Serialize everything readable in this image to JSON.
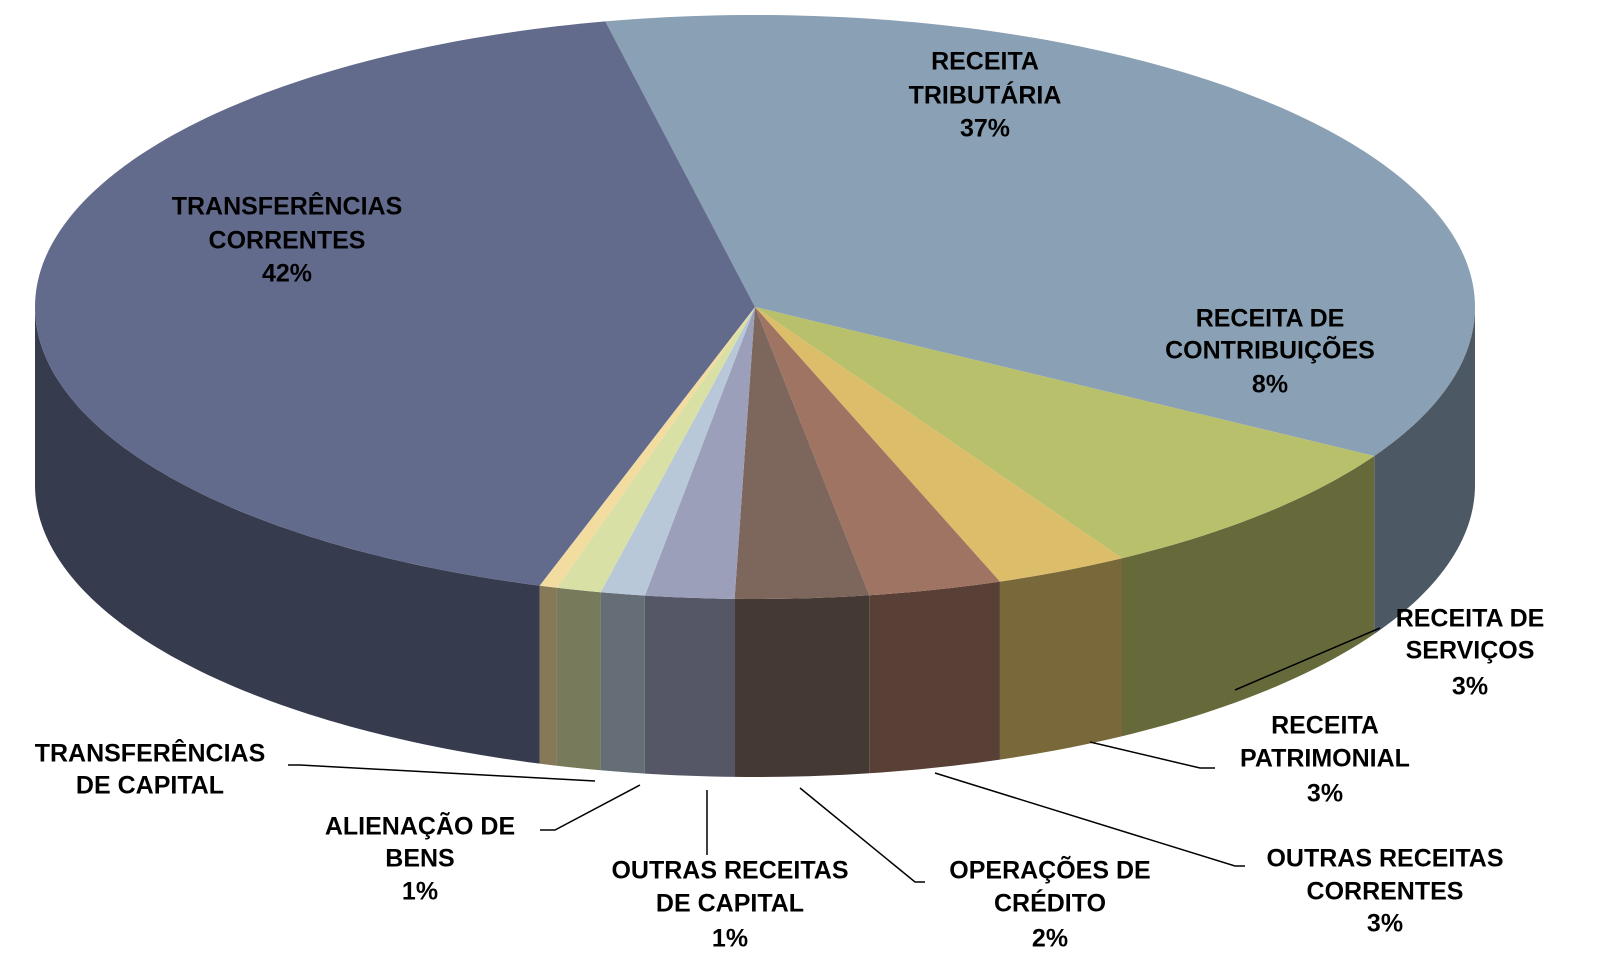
{
  "chart_data": {
    "type": "pie",
    "categories": [
      [
        "RECEITA",
        "TRIBUTÁRIA"
      ],
      [
        "RECEITA DE",
        "CONTRIBUIÇÕES"
      ],
      [
        "RECEITA DE",
        "SERVIÇOS"
      ],
      [
        "RECEITA",
        "PATRIMONIAL"
      ],
      [
        "OUTRAS RECEITAS",
        "CORRENTES"
      ],
      [
        "OPERAÇÕES DE",
        "CRÉDITO"
      ],
      [
        "OUTRAS RECEITAS",
        "DE CAPITAL"
      ],
      [
        "ALIENAÇÃO DE",
        "BENS"
      ],
      [
        "TRANSFERÊNCIAS",
        "DE CAPITAL"
      ],
      [
        "TRANSFERÊNCIAS",
        "CORRENTES"
      ]
    ],
    "values": [
      37,
      8,
      3,
      3,
      3,
      2,
      1,
      1,
      0.4,
      42
    ],
    "value_labels": [
      "37%",
      "8%",
      "3%",
      "3%",
      "3%",
      "2%",
      "1%",
      "1%",
      null,
      "42%"
    ],
    "colors": [
      "#8aa0b4",
      "#b9c06c",
      "#dcbd69",
      "#a07462",
      "#7d675d",
      "#9c9fba",
      "#b8c8d8",
      "#d8e0a6",
      "#f3dca0",
      "#636b8d"
    ]
  }
}
